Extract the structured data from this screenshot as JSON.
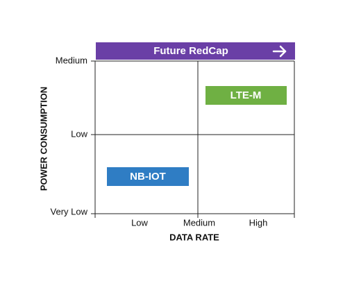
{
  "banner": {
    "label": "Future RedCap"
  },
  "y_axis": {
    "title": "POWER CONSUMPTION",
    "labels": [
      "Medium",
      "Low",
      "Very Low"
    ]
  },
  "x_axis": {
    "title": "DATA RATE",
    "labels": [
      "Low",
      "Medium",
      "High"
    ]
  },
  "boxes": [
    {
      "label": "LTE-M"
    },
    {
      "label": "NB-IOT"
    }
  ]
}
